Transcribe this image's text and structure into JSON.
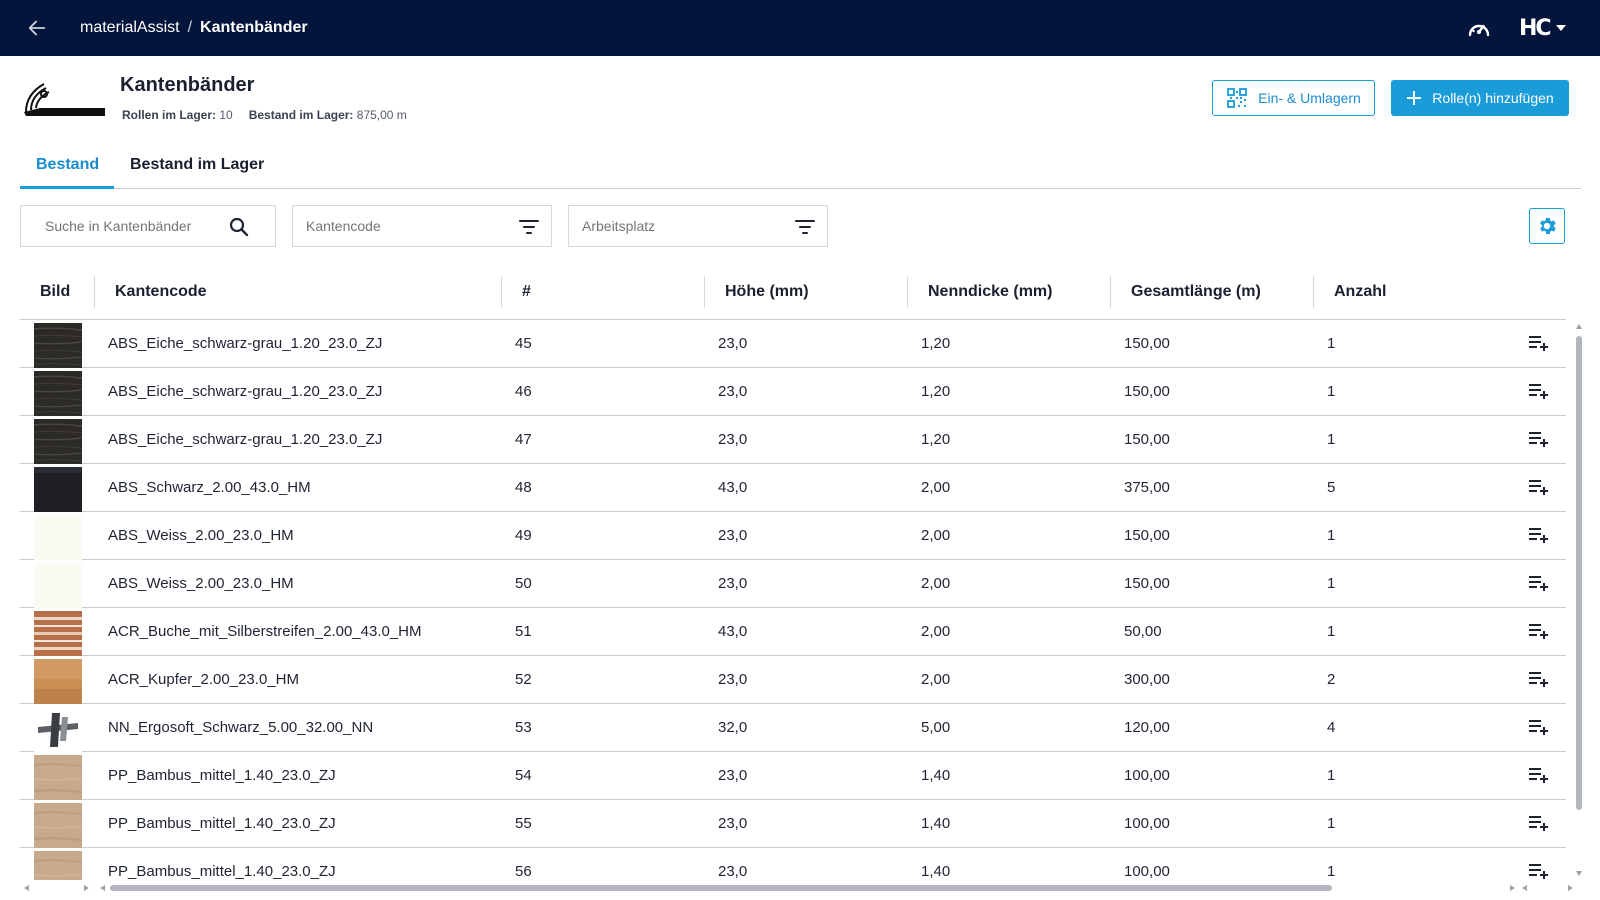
{
  "topbar": {
    "app_name": "materialAssist",
    "separator": "/",
    "current_page": "Kantenbänder",
    "logo_text": "HC",
    "icons": [
      "back-arrow-icon",
      "gauge-icon",
      "chevron-down-icon"
    ]
  },
  "header": {
    "title": "Kantenbänder",
    "rolls_label": "Rollen im Lager:",
    "rolls_value": "10",
    "stock_label": "Bestand im Lager:",
    "stock_value": "875,00 m",
    "relocate_button": "Ein- & Umlagern",
    "add_button": "Rolle(n) hinzufügen"
  },
  "tabs": [
    {
      "label": "Bestand",
      "active": true
    },
    {
      "label": "Bestand im Lager",
      "active": false
    }
  ],
  "filters": {
    "search_placeholder": "Suche in Kantenbänder",
    "select1_placeholder": "Kantencode",
    "select2_placeholder": "Arbeitsplatz"
  },
  "table": {
    "columns": [
      "Bild",
      "Kantencode",
      "#",
      "Höhe (mm)",
      "Nenndicke (mm)",
      "Gesamtlänge (m)",
      "Anzahl"
    ],
    "rows": [
      {
        "swatch": "dark-wood",
        "code": "ABS_Eiche_schwarz-grau_1.20_23.0_ZJ",
        "num": "45",
        "hoehe": "23,0",
        "dicke": "1,20",
        "laenge": "150,00",
        "anzahl": "1"
      },
      {
        "swatch": "dark-wood",
        "code": "ABS_Eiche_schwarz-grau_1.20_23.0_ZJ",
        "num": "46",
        "hoehe": "23,0",
        "dicke": "1,20",
        "laenge": "150,00",
        "anzahl": "1"
      },
      {
        "swatch": "dark-wood",
        "code": "ABS_Eiche_schwarz-grau_1.20_23.0_ZJ",
        "num": "47",
        "hoehe": "23,0",
        "dicke": "1,20",
        "laenge": "150,00",
        "anzahl": "1"
      },
      {
        "swatch": "black",
        "code": "ABS_Schwarz_2.00_43.0_HM",
        "num": "48",
        "hoehe": "43,0",
        "dicke": "2,00",
        "laenge": "375,00",
        "anzahl": "5"
      },
      {
        "swatch": "white",
        "code": "ABS_Weiss_2.00_23.0_HM",
        "num": "49",
        "hoehe": "23,0",
        "dicke": "2,00",
        "laenge": "150,00",
        "anzahl": "1"
      },
      {
        "swatch": "white",
        "code": "ABS_Weiss_2.00_23.0_HM",
        "num": "50",
        "hoehe": "23,0",
        "dicke": "2,00",
        "laenge": "150,00",
        "anzahl": "1"
      },
      {
        "swatch": "beech-stripes",
        "code": "ACR_Buche_mit_Silberstreifen_2.00_43.0_HM",
        "num": "51",
        "hoehe": "43,0",
        "dicke": "2,00",
        "laenge": "50,00",
        "anzahl": "1"
      },
      {
        "swatch": "copper",
        "code": "ACR_Kupfer_2.00_23.0_HM",
        "num": "52",
        "hoehe": "23,0",
        "dicke": "2,00",
        "laenge": "300,00",
        "anzahl": "2"
      },
      {
        "swatch": "profile",
        "code": "NN_Ergosoft_Schwarz_5.00_32.00_NN",
        "num": "53",
        "hoehe": "32,0",
        "dicke": "5,00",
        "laenge": "120,00",
        "anzahl": "4"
      },
      {
        "swatch": "bamboo",
        "code": "PP_Bambus_mittel_1.40_23.0_ZJ",
        "num": "54",
        "hoehe": "23,0",
        "dicke": "1,40",
        "laenge": "100,00",
        "anzahl": "1"
      },
      {
        "swatch": "bamboo",
        "code": "PP_Bambus_mittel_1.40_23.0_ZJ",
        "num": "55",
        "hoehe": "23,0",
        "dicke": "1,40",
        "laenge": "100,00",
        "anzahl": "1"
      },
      {
        "swatch": "bamboo",
        "code": "PP_Bambus_mittel_1.40_23.0_ZJ",
        "num": "56",
        "hoehe": "23,0",
        "dicke": "1,40",
        "laenge": "100,00",
        "anzahl": "1"
      }
    ]
  },
  "colors": {
    "topbar": "#04153b",
    "accent": "#1a9cd8",
    "text": "#1f2433",
    "divider": "#c9ccd3"
  }
}
